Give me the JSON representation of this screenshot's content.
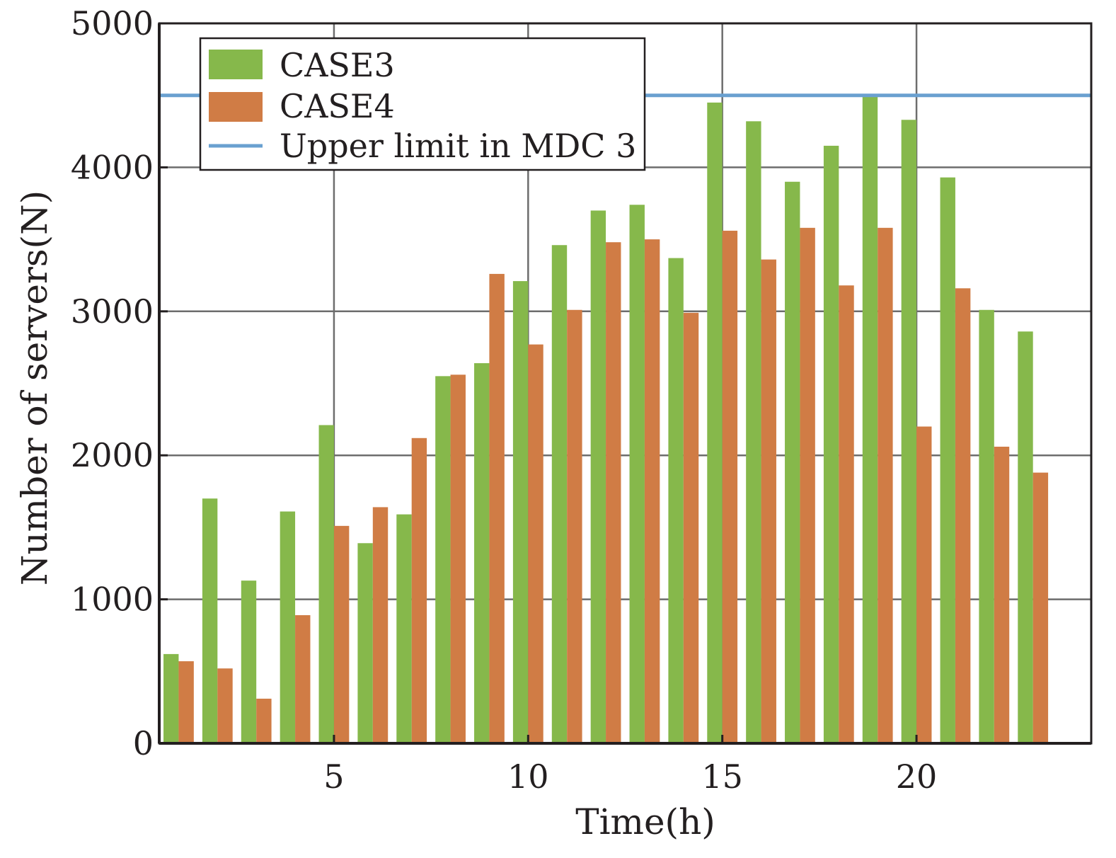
{
  "chart_data": {
    "type": "bar",
    "title": "",
    "xlabel": "Time(h)",
    "ylabel": "Number of servers(N)",
    "xlim": [
      1,
      24
    ],
    "ylim": [
      0,
      5000
    ],
    "x_ticks": [
      5,
      10,
      15,
      20
    ],
    "y_ticks": [
      0,
      1000,
      2000,
      3000,
      4000,
      5000
    ],
    "grid": true,
    "legend_position": "top-left",
    "x": [
      1,
      2,
      3,
      4,
      5,
      6,
      7,
      8,
      9,
      10,
      11,
      12,
      13,
      14,
      15,
      16,
      17,
      18,
      19,
      20,
      21,
      22,
      23
    ],
    "series": [
      {
        "name": "CASE3",
        "color": "#86b84b",
        "values": [
          620,
          1700,
          1130,
          1610,
          2210,
          1390,
          1590,
          2550,
          2640,
          3210,
          3460,
          3700,
          3740,
          3370,
          4450,
          4320,
          3900,
          4150,
          4500,
          4330,
          3930,
          3010,
          2860
        ]
      },
      {
        "name": "CASE4",
        "color": "#d07c45",
        "values": [
          570,
          520,
          310,
          890,
          1510,
          1640,
          2120,
          2560,
          3260,
          2770,
          3010,
          3480,
          3500,
          2990,
          3560,
          3360,
          3580,
          3180,
          3580,
          2200,
          3160,
          2060,
          1880
        ]
      }
    ],
    "reference_lines": [
      {
        "name": "Upper limit in MDC 3",
        "value": 4500,
        "color": "#6aa0d0"
      }
    ]
  }
}
